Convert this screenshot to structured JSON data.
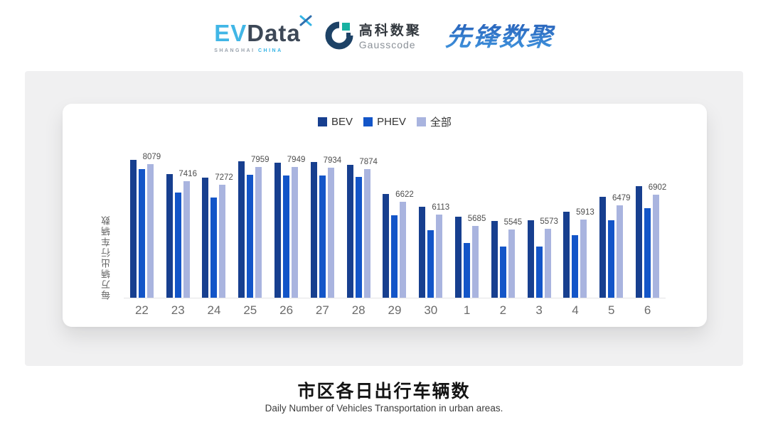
{
  "header": {
    "evdata": {
      "word_left": "EV",
      "word_right": "Data",
      "mark_icon": "x-star-icon",
      "subtitle_left": "SHANGHAI",
      "subtitle_right": "CHINA"
    },
    "gausscode": {
      "mark_icon": "gausscode-g-icon",
      "cn": "高科数聚",
      "en": "Gausscode"
    },
    "xianfeng": {
      "text": "先锋数聚"
    }
  },
  "chart_data": {
    "type": "bar",
    "title": "市区各日出行车辆数",
    "subtitle": "Daily Number of Vehicles Transportation in urban areas.",
    "ylabel": "每万辆出行车辆数",
    "xlabel": "",
    "categories": [
      "22",
      "23",
      "24",
      "25",
      "26",
      "27",
      "28",
      "29",
      "30",
      "1",
      "2",
      "3",
      "4",
      "5",
      "6"
    ],
    "series": [
      {
        "name": "BEV",
        "color": "#173f8f",
        "values": [
          8230,
          7680,
          7550,
          8170,
          8140,
          8160,
          8040,
          6920,
          6430,
          6050,
          5880,
          5900,
          6220,
          6800,
          7210
        ]
      },
      {
        "name": "PHEV",
        "color": "#1355c8",
        "values": [
          7880,
          6980,
          6770,
          7660,
          7640,
          7620,
          7580,
          6100,
          5510,
          5030,
          4890,
          4890,
          5330,
          5910,
          6370
        ]
      },
      {
        "name": "全部",
        "color": "#a9b4df",
        "values": [
          8079,
          7416,
          7272,
          7959,
          7949,
          7934,
          7874,
          6622,
          6113,
          5685,
          5545,
          5573,
          5913,
          6479,
          6902
        ]
      }
    ],
    "data_labels": [
      "8079",
      "7416",
      "7272",
      "7959",
      "7949",
      "7934",
      "7874",
      "6622",
      "6113",
      "5685",
      "5545",
      "5573",
      "5913",
      "6479",
      "6902"
    ],
    "data_labels_on_series": "全部",
    "ylim": [
      2900,
      8400
    ],
    "grid": false,
    "y_ticks_visible": false,
    "legend_position": "top-center",
    "axis_line_color": "#e3e3e6"
  },
  "footer": {
    "title": "市区各日出行车辆数",
    "subtitle": "Daily Number of Vehicles Transportation in urban areas."
  }
}
